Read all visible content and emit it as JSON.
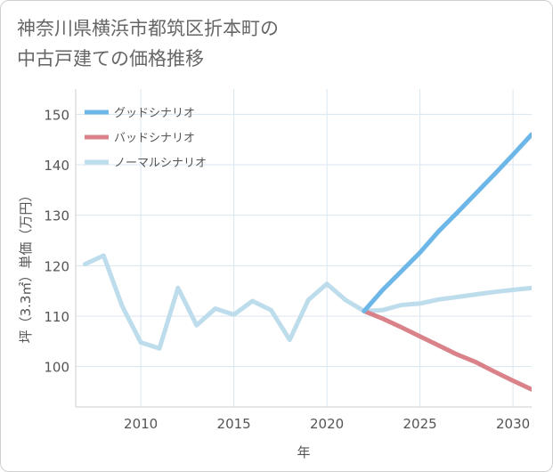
{
  "title_line1": "神奈川県横浜市都筑区折本町の",
  "title_line2": "中古戸建ての価格推移",
  "chart_data": {
    "type": "line",
    "xlabel": "年",
    "ylabel": "坪（3.3㎡）単価（万円）",
    "xlim": [
      2006.5,
      2031
    ],
    "ylim": [
      92,
      155
    ],
    "xticks": [
      2010,
      2015,
      2020,
      2025,
      2030
    ],
    "yticks": [
      100,
      110,
      120,
      130,
      140,
      150
    ],
    "grid": true,
    "legend_position": "top-left",
    "series": [
      {
        "name": "グッドシナリオ",
        "color": "#6cb6e8",
        "x": [
          2022,
          2023,
          2024,
          2025,
          2026,
          2027,
          2028,
          2029,
          2030,
          2031
        ],
        "y": [
          111.0,
          115.2,
          118.9,
          122.6,
          126.8,
          130.5,
          134.3,
          138.1,
          142.0,
          146.0
        ]
      },
      {
        "name": "バッドシナリオ",
        "color": "#d9828a",
        "x": [
          2022,
          2023,
          2024,
          2025,
          2026,
          2027,
          2028,
          2029,
          2030,
          2031
        ],
        "y": [
          111.0,
          109.5,
          107.8,
          106.0,
          104.2,
          102.4,
          100.9,
          99.0,
          97.2,
          95.5
        ]
      },
      {
        "name": "ノーマルシナリオ",
        "color": "#bddcec",
        "x": [
          2007,
          2008,
          2009,
          2010,
          2011,
          2012,
          2013,
          2014,
          2015,
          2016,
          2017,
          2018,
          2019,
          2020,
          2021,
          2022,
          2023,
          2024,
          2025,
          2026,
          2027,
          2028,
          2029,
          2030,
          2031
        ],
        "y": [
          120.3,
          122.0,
          112.0,
          104.8,
          103.6,
          115.6,
          108.2,
          111.5,
          110.3,
          113.0,
          111.2,
          105.3,
          113.2,
          116.4,
          113.2,
          111.0,
          111.2,
          112.2,
          112.5,
          113.3,
          113.8,
          114.3,
          114.8,
          115.2,
          115.6
        ]
      }
    ]
  }
}
